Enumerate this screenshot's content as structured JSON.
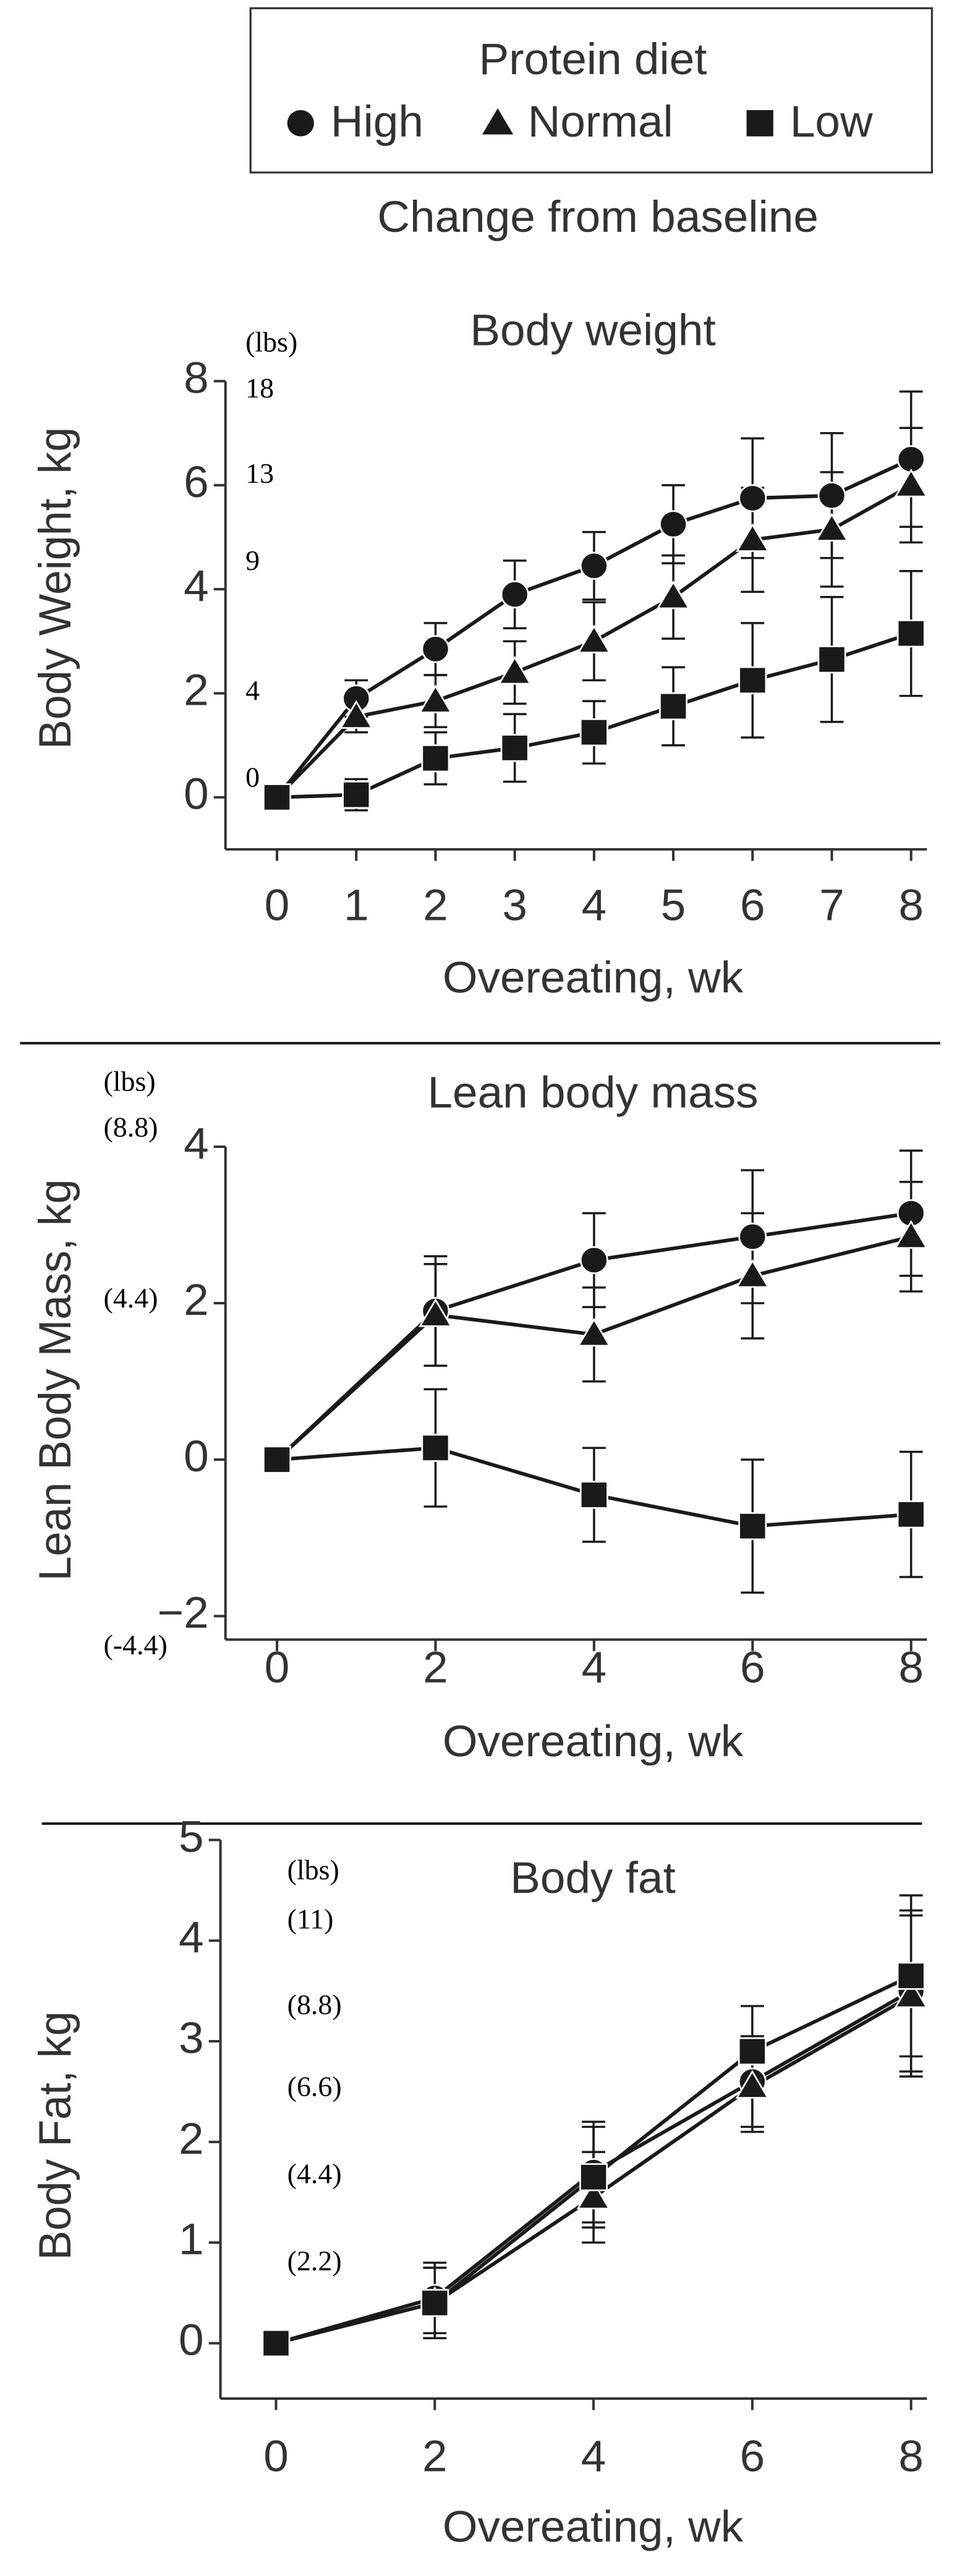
{
  "legend": {
    "title": "Protein diet"
  },
  "heading": "Change from baseline",
  "chart_data": [
    {
      "type": "line",
      "title": "Body weight",
      "x_label": "Overeating, wk",
      "y_label": "Body Weight, kg",
      "annotations": [
        "(lbs)",
        "18",
        "13",
        "9",
        "4",
        "0"
      ],
      "x": [
        0,
        1,
        2,
        3,
        4,
        5,
        6,
        7,
        8
      ],
      "xlim": [
        -0.65,
        8.2
      ],
      "xticks": [
        0,
        1,
        2,
        3,
        4,
        5,
        6,
        7,
        8
      ],
      "ylim": [
        -1,
        8
      ],
      "yticks": [
        0,
        2,
        4,
        6,
        8
      ],
      "series": [
        {
          "name": "High",
          "marker": "circle",
          "color": "#1a1a1a",
          "values": [
            0,
            1.9,
            2.85,
            3.9,
            4.45,
            5.25,
            5.75,
            5.8,
            6.5
          ],
          "errors": [
            0,
            0.35,
            0.5,
            0.65,
            0.65,
            0.75,
            1.15,
            1.2,
            1.3
          ]
        },
        {
          "name": "Normal",
          "marker": "triangle",
          "color": "#1a1a1a",
          "values": [
            0,
            1.55,
            1.85,
            2.4,
            3.0,
            3.85,
            4.95,
            5.15,
            6.0
          ],
          "errors": [
            0,
            0.3,
            0.5,
            0.6,
            0.75,
            0.8,
            1.0,
            1.1,
            1.1
          ]
        },
        {
          "name": "Low",
          "marker": "square",
          "color": "#1a1a1a",
          "values": [
            0,
            0.05,
            0.75,
            0.95,
            1.25,
            1.75,
            2.25,
            2.65,
            3.15
          ],
          "errors": [
            0,
            0.3,
            0.5,
            0.65,
            0.6,
            0.75,
            1.1,
            1.2,
            1.2
          ]
        }
      ]
    },
    {
      "type": "line",
      "title": "Lean body mass",
      "x_label": "Overeating, wk",
      "y_label": "Lean Body Mass, kg",
      "annotations": [
        "(lbs)",
        "(8.8)",
        "(4.4)",
        "(-4.4)"
      ],
      "x": [
        0,
        2,
        4,
        6,
        8
      ],
      "xlim": [
        -0.65,
        8.2
      ],
      "xticks": [
        0,
        2,
        4,
        6,
        8
      ],
      "ylim": [
        -2.3,
        4
      ],
      "yticks": [
        {
          "value": -2,
          "label": "−2"
        },
        0,
        2,
        4
      ],
      "series": [
        {
          "name": "High",
          "marker": "circle",
          "color": "#1a1a1a",
          "values": [
            0,
            1.9,
            2.55,
            2.85,
            3.15
          ],
          "errors": [
            0,
            0.7,
            0.6,
            0.85,
            0.8
          ]
        },
        {
          "name": "Normal",
          "marker": "triangle",
          "color": "#1a1a1a",
          "values": [
            0,
            1.85,
            1.6,
            2.35,
            2.85
          ],
          "errors": [
            0,
            0.65,
            0.6,
            0.8,
            0.7
          ]
        },
        {
          "name": "Low",
          "marker": "square",
          "color": "#1a1a1a",
          "values": [
            0,
            0.15,
            -0.45,
            -0.85,
            -0.7
          ],
          "errors": [
            0,
            0.75,
            0.6,
            0.85,
            0.8
          ]
        }
      ]
    },
    {
      "type": "line",
      "title": "Body fat",
      "x_label": "Overeating, wk",
      "y_label": "Body Fat, kg",
      "annotations": [
        "(lbs)",
        "(11)",
        "(8.8)",
        "(6.6)",
        "(4.4)",
        "(2.2)"
      ],
      "x": [
        0,
        2,
        4,
        6,
        8
      ],
      "xlim": [
        -0.7,
        8.2
      ],
      "xticks": [
        0,
        2,
        4,
        6,
        8
      ],
      "ylim": [
        -0.55,
        5
      ],
      "yticks": [
        0,
        1,
        2,
        3,
        4,
        5
      ],
      "series": [
        {
          "name": "High",
          "marker": "circle",
          "color": "#1a1a1a",
          "values": [
            0,
            0.45,
            1.7,
            2.6,
            3.5
          ],
          "errors": [
            0,
            0.35,
            0.5,
            0.45,
            0.8
          ]
        },
        {
          "name": "Normal",
          "marker": "triangle",
          "color": "#1a1a1a",
          "values": [
            0,
            0.4,
            1.45,
            2.55,
            3.45
          ],
          "errors": [
            0,
            0.35,
            0.45,
            0.45,
            0.8
          ]
        },
        {
          "name": "Low",
          "marker": "square",
          "color": "#1a1a1a",
          "values": [
            0,
            0.4,
            1.65,
            2.9,
            3.65
          ],
          "errors": [
            0,
            0.35,
            0.5,
            0.45,
            0.8
          ]
        }
      ]
    }
  ]
}
